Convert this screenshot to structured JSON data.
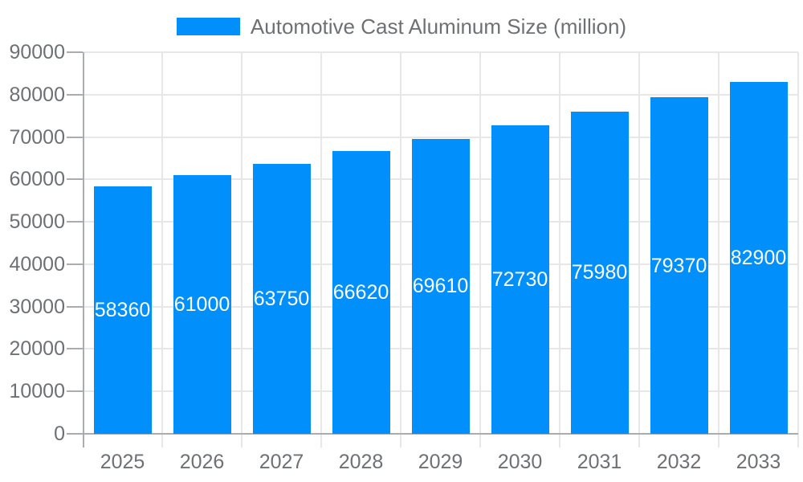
{
  "legend": {
    "label": "Automotive Cast Aluminum Size (million)",
    "swatch_color": "#008FFB"
  },
  "chart_data": {
    "type": "bar",
    "title": "Automotive Cast Aluminum Size (million)",
    "categories": [
      "2025",
      "2026",
      "2027",
      "2028",
      "2029",
      "2030",
      "2031",
      "2032",
      "2033"
    ],
    "values": [
      58360,
      61000,
      63750,
      66620,
      69610,
      72730,
      75980,
      79370,
      82900
    ],
    "value_labels": [
      "58360",
      "61000",
      "63750",
      "66620",
      "69610",
      "72730",
      "75980",
      "79370",
      "82900"
    ],
    "xlabel": "",
    "ylabel": "",
    "ylim": [
      0,
      90000
    ],
    "ytick_step": 10000,
    "yticks": [
      0,
      10000,
      20000,
      30000,
      40000,
      50000,
      60000,
      70000,
      80000,
      90000
    ],
    "ytick_labels": [
      "0",
      "10000",
      "20000",
      "30000",
      "40000",
      "50000",
      "60000",
      "70000",
      "80000",
      "90000"
    ],
    "grid": "horizontal-and-vertical",
    "legend_position": "top-center",
    "data_label_position": "inside-center"
  },
  "colors": {
    "bar": "#008FFB",
    "grid": "#e7e7e9",
    "axis": "#aaadb0",
    "text": "#6e7174",
    "value_label": "#ffffff"
  }
}
